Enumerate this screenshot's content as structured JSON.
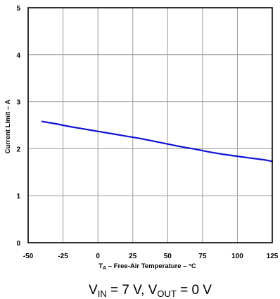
{
  "chart_data": {
    "type": "line",
    "xlabel_prefix": "T",
    "xlabel_sub": "A",
    "xlabel_rest": " – Free-Air Temperature – °C",
    "ylabel": "Current Limit – A",
    "xlim": [
      -50,
      125
    ],
    "ylim": [
      0,
      5
    ],
    "x_ticks": [
      -50,
      -25,
      0,
      25,
      50,
      75,
      100,
      125
    ],
    "y_ticks": [
      0,
      1,
      2,
      3,
      4,
      5
    ],
    "grid": true,
    "series": [
      {
        "color": "#1010d8",
        "x": [
          -40,
          -30,
          -20,
          -10,
          0,
          10,
          20,
          30,
          40,
          50,
          60,
          70,
          80,
          90,
          100,
          110,
          120,
          125
        ],
        "y": [
          2.58,
          2.53,
          2.47,
          2.42,
          2.37,
          2.32,
          2.27,
          2.22,
          2.16,
          2.1,
          2.04,
          1.99,
          1.93,
          1.88,
          1.84,
          1.8,
          1.76,
          1.73
        ]
      }
    ],
    "caption": {
      "p1": "V",
      "s1": "IN",
      "p2": " = 7 V, V",
      "s2": "OUT",
      "p3": " = 0 V"
    }
  }
}
